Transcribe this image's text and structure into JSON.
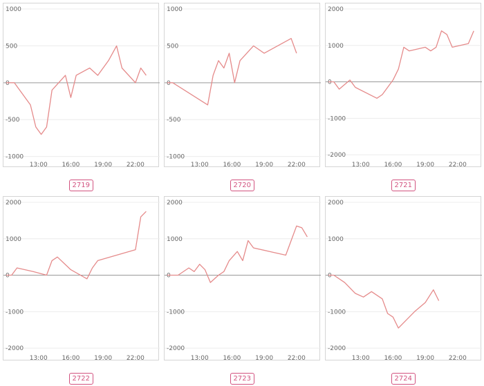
{
  "style": {
    "line_color": "#e58a8a",
    "zero_line_color": "#999999",
    "grid_color": "#ececec",
    "badge_color": "#d2527f"
  },
  "x_ticks": [
    "13:00",
    "16:00",
    "19:00",
    "22:00"
  ],
  "chart_data": [
    {
      "type": "line",
      "label": "2719",
      "ylim": [
        -1050,
        1000
      ],
      "y_ticks": [
        "1000",
        "500",
        "0",
        "-500",
        "-1000"
      ],
      "y_tick_values": [
        1000,
        500,
        0,
        -500,
        -1000
      ],
      "x": [
        10.0,
        10.75,
        12.25,
        12.75,
        13.25,
        13.75,
        14.25,
        15.5,
        16.0,
        16.5,
        17.75,
        18.5,
        19.5,
        20.25,
        20.75,
        22.0,
        22.5,
        23.0
      ],
      "y": [
        0,
        0,
        -300,
        -600,
        -700,
        -600,
        -100,
        100,
        -200,
        100,
        200,
        100,
        300,
        500,
        200,
        0,
        200,
        100
      ]
    },
    {
      "type": "line",
      "label": "2720",
      "ylim": [
        -1050,
        1000
      ],
      "y_ticks": [
        "1000",
        "500",
        "0",
        "-500",
        "-1000"
      ],
      "y_tick_values": [
        1000,
        500,
        0,
        -500,
        -1000
      ],
      "x": [
        10.0,
        10.5,
        13.75,
        14.25,
        14.75,
        15.25,
        15.75,
        16.25,
        16.75,
        18.0,
        19.0,
        21.5,
        22.0
      ],
      "y": [
        0,
        0,
        -300,
        100,
        300,
        200,
        400,
        0,
        300,
        500,
        400,
        600,
        400
      ]
    },
    {
      "type": "line",
      "label": "2721",
      "ylim": [
        -2150,
        2000
      ],
      "y_ticks": [
        "2000",
        "1000",
        "0",
        "-1000",
        "-2000"
      ],
      "y_tick_values": [
        2000,
        1000,
        0,
        -1000,
        -2000
      ],
      "x": [
        10.0,
        10.5,
        11.0,
        12.0,
        12.5,
        14.5,
        15.0,
        16.0,
        16.5,
        17.0,
        17.5,
        19.0,
        19.5,
        20.0,
        20.5,
        21.0,
        21.5,
        23.0,
        23.5
      ],
      "y": [
        0,
        0,
        -200,
        50,
        -150,
        -450,
        -350,
        50,
        350,
        950,
        850,
        950,
        850,
        950,
        1400,
        1300,
        950,
        1050,
        1400
      ]
    },
    {
      "type": "line",
      "label": "2722",
      "ylim": [
        -2150,
        2000
      ],
      "y_ticks": [
        "2000",
        "1000",
        "0",
        "-1000",
        "-2000"
      ],
      "y_tick_values": [
        2000,
        1000,
        0,
        -1000,
        -2000
      ],
      "x": [
        10.0,
        10.5,
        11.0,
        12.5,
        13.75,
        14.25,
        14.75,
        16.0,
        17.5,
        18.0,
        18.5,
        22.0,
        22.5,
        23.0
      ],
      "y": [
        0,
        0,
        200,
        100,
        0,
        400,
        500,
        150,
        -100,
        200,
        400,
        700,
        1600,
        1750
      ]
    },
    {
      "type": "line",
      "label": "2723",
      "ylim": [
        -2150,
        2000
      ],
      "y_ticks": [
        "2000",
        "1000",
        "0",
        "-1000",
        "-2000"
      ],
      "y_tick_values": [
        2000,
        1000,
        0,
        -1000,
        -2000
      ],
      "x": [
        10.0,
        11.0,
        12.0,
        12.5,
        13.0,
        13.5,
        14.0,
        14.75,
        15.25,
        15.75,
        16.5,
        17.0,
        17.5,
        18.0,
        19.5,
        21.0,
        21.5,
        22.0,
        22.5,
        23.0
      ],
      "y": [
        0,
        0,
        200,
        100,
        300,
        150,
        -200,
        0,
        100,
        400,
        650,
        400,
        950,
        750,
        650,
        550,
        950,
        1350,
        1300,
        1050
      ]
    },
    {
      "type": "line",
      "label": "2724",
      "ylim": [
        -2150,
        2000
      ],
      "y_ticks": [
        "2000",
        "1000",
        "0",
        "-1000",
        "-2000"
      ],
      "y_tick_values": [
        2000,
        1000,
        0,
        -1000,
        -2000
      ],
      "x": [
        10.0,
        10.5,
        11.5,
        12.5,
        13.25,
        14.0,
        15.0,
        15.5,
        16.0,
        16.5,
        18.0,
        19.0,
        19.75,
        20.25
      ],
      "y": [
        0,
        0,
        -200,
        -500,
        -600,
        -450,
        -650,
        -1050,
        -1150,
        -1450,
        -1000,
        -750,
        -400,
        -700
      ]
    }
  ]
}
